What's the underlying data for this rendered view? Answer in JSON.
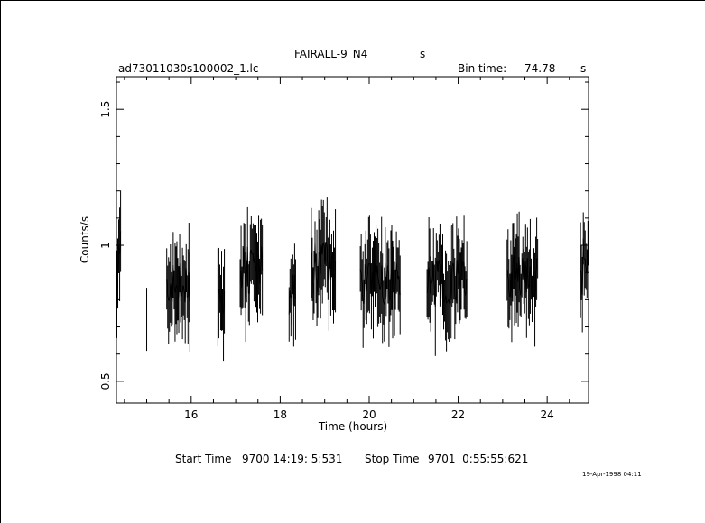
{
  "header": {
    "object": "FAIRALL-9_N4",
    "object_unit": "s",
    "file": "ad73011030s100002_1.lc",
    "bin_label": "Bin time:",
    "bin_value": "74.78",
    "bin_unit": "s"
  },
  "footer": {
    "start_label": "Start Time",
    "start_value": "9700 14:19: 5:531",
    "stop_label": "Stop Time",
    "stop_value": "9701  0:55:55:621",
    "date_stamp": "19-Apr-1998 04:11"
  },
  "colors": {
    "ink": "#000000",
    "background": "#ffffff"
  },
  "chart_data": {
    "type": "line",
    "xlabel": "Time (hours)",
    "ylabel": "Counts/s",
    "xlim": [
      14.32,
      24.93
    ],
    "ylim": [
      0.42,
      1.62
    ],
    "xticks": [
      16,
      18,
      20,
      22,
      24
    ],
    "yticks": [
      0.5,
      1,
      1.5
    ],
    "xtick_labels": [
      "16",
      "18",
      "20",
      "22",
      "24"
    ],
    "ytick_labels": [
      "0.5",
      "1",
      "1.5"
    ],
    "grid": false,
    "segments": [
      {
        "start": 14.33,
        "end": 14.43,
        "center": 0.95,
        "spread": 0.13
      },
      {
        "start": 15.0,
        "end": 15.02,
        "center": 0.8,
        "spread": 0.12
      },
      {
        "start": 15.45,
        "end": 15.98,
        "center": 0.86,
        "spread": 0.08
      },
      {
        "start": 16.6,
        "end": 16.75,
        "center": 0.78,
        "spread": 0.07
      },
      {
        "start": 17.1,
        "end": 17.6,
        "center": 0.9,
        "spread": 0.1
      },
      {
        "start": 18.2,
        "end": 18.35,
        "center": 0.82,
        "spread": 0.08
      },
      {
        "start": 18.7,
        "end": 19.25,
        "center": 0.92,
        "spread": 0.1
      },
      {
        "start": 19.8,
        "end": 20.7,
        "center": 0.86,
        "spread": 0.08
      },
      {
        "start": 21.3,
        "end": 22.2,
        "center": 0.86,
        "spread": 0.09
      },
      {
        "start": 23.1,
        "end": 23.8,
        "center": 0.88,
        "spread": 0.09
      },
      {
        "start": 24.75,
        "end": 24.93,
        "center": 0.92,
        "spread": 0.12
      }
    ],
    "bin_hours": 0.0208
  }
}
